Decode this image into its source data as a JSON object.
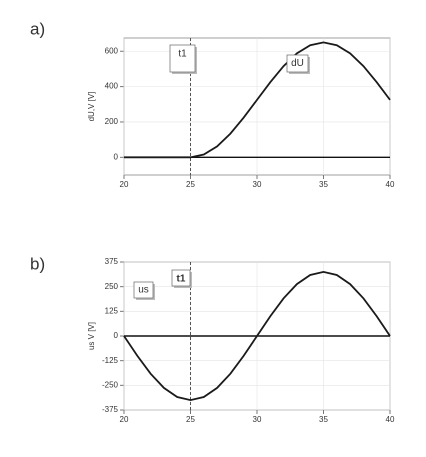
{
  "chart_data": [
    {
      "type": "line",
      "panel_label": "a)",
      "ylabel": "dU,V [V]",
      "x": [
        20,
        21,
        22,
        23,
        24,
        25,
        26,
        27,
        28,
        29,
        30,
        31,
        32,
        33,
        34,
        35,
        36,
        37,
        38,
        39,
        40
      ],
      "series": [
        {
          "name": "dU",
          "color": "#1a1a1a",
          "values": [
            0,
            0,
            0,
            0,
            0,
            0,
            16,
            62,
            134,
            225,
            325,
            425,
            516,
            588,
            634,
            650,
            634,
            588,
            516,
            425,
            325
          ]
        }
      ],
      "xlim": [
        20,
        40
      ],
      "ylim": [
        -100,
        675
      ],
      "xticks": [
        20,
        25,
        30,
        35,
        40
      ],
      "yticks": [
        0,
        200,
        400,
        600
      ],
      "vline": {
        "label": "t1",
        "x": 25
      },
      "grid": true
    },
    {
      "type": "line",
      "panel_label": "b)",
      "ylabel": "us V [V]",
      "x": [
        20,
        21,
        22,
        23,
        24,
        25,
        26,
        27,
        28,
        29,
        30,
        31,
        32,
        33,
        34,
        35,
        36,
        37,
        38,
        39,
        40
      ],
      "series": [
        {
          "name": "us",
          "color": "#1a1a1a",
          "values": [
            0,
            -100,
            -191,
            -263,
            -309,
            -325,
            -309,
            -263,
            -191,
            -100,
            0,
            100,
            191,
            263,
            309,
            325,
            309,
            263,
            191,
            100,
            0
          ]
        }
      ],
      "xlim": [
        20,
        40
      ],
      "ylim": [
        -375,
        375
      ],
      "xticks": [
        20,
        25,
        30,
        35,
        40
      ],
      "yticks": [
        -375,
        -250,
        -125,
        0,
        125,
        250,
        375
      ],
      "vline": {
        "label": "t1",
        "x": 25
      },
      "grid": true
    }
  ]
}
